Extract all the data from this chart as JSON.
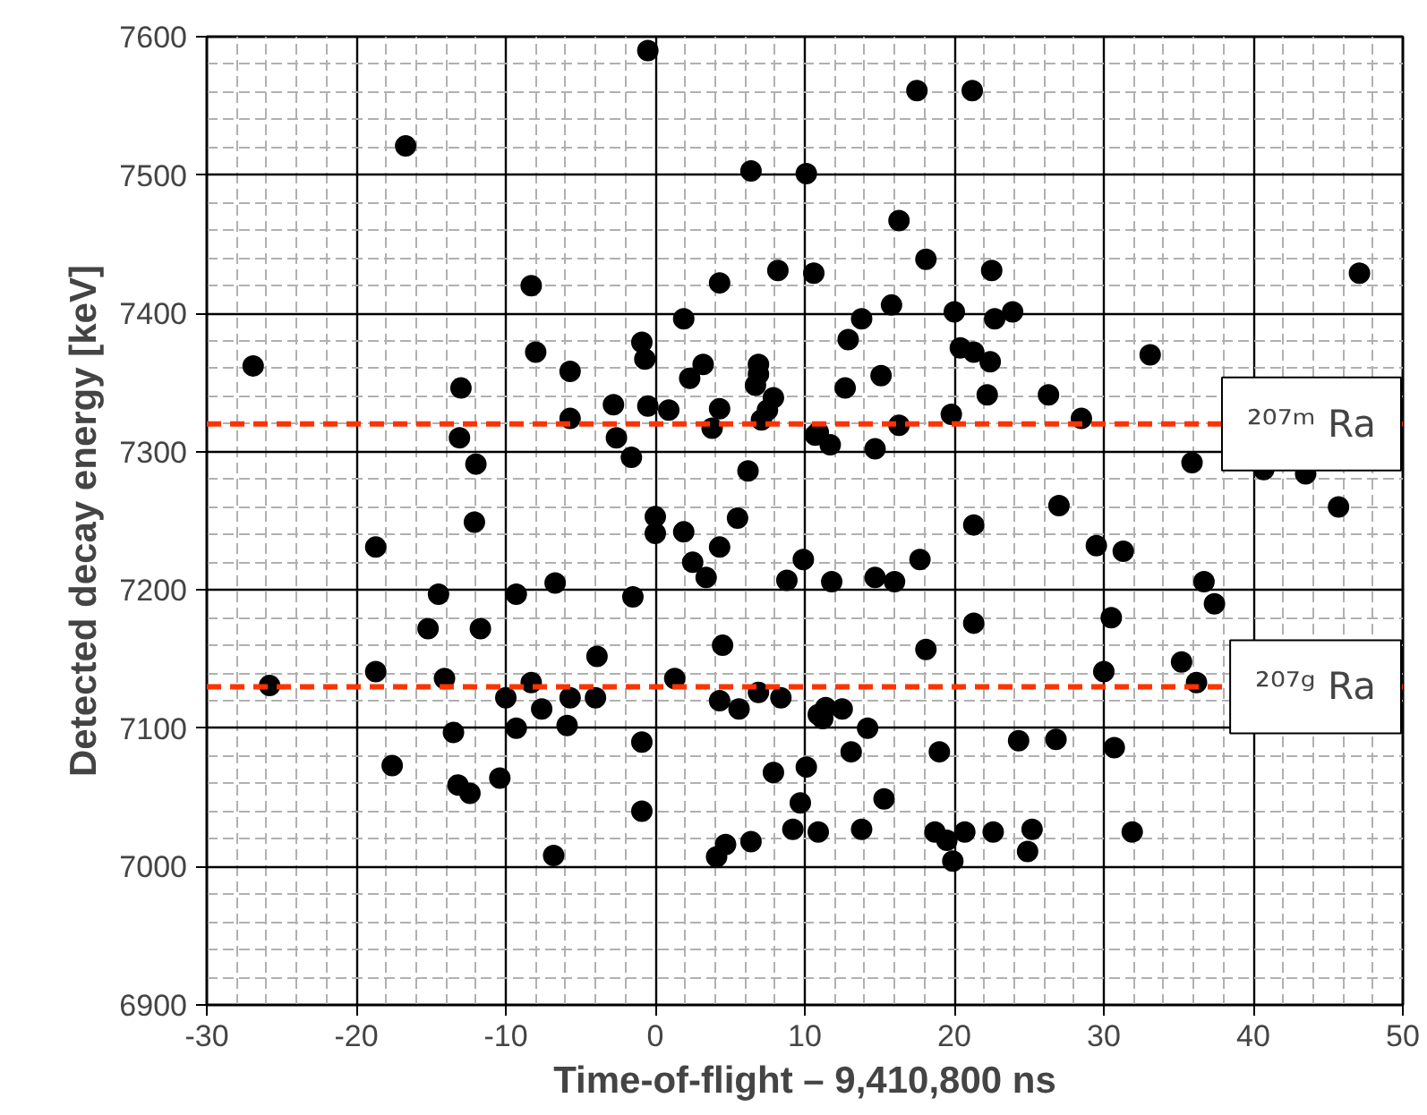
{
  "chart_data": {
    "type": "scatter",
    "xlabel": "Time-of-flight – 9,410,800 ns",
    "ylabel": "Detected decay energy [keV]",
    "xlim": [
      -30,
      50
    ],
    "xticks": [
      -30,
      -20,
      -10,
      0,
      10,
      20,
      30,
      40,
      50
    ],
    "ylim": [
      6900,
      7600
    ],
    "yticks": [
      6900,
      7000,
      7100,
      7200,
      7300,
      7400,
      7500,
      7600
    ],
    "grid": true,
    "marker": "circle",
    "ref_lines": [
      {
        "axis": "y",
        "value": 7320,
        "label": "²⁰⁷ᵐ Ra",
        "color": "#ff3300",
        "line_style": "dashed"
      },
      {
        "axis": "y",
        "value": 7130,
        "label": "²⁰⁷ᵍ Ra",
        "color": "#ff3300",
        "line_style": "dashed"
      }
    ],
    "series": [
      {
        "color": "#000000",
        "x": [
          -26.9,
          -25.8,
          -18.7,
          -16.7,
          -0.5,
          6.4,
          10.1,
          17.5,
          21.2,
          47.1,
          -8.3,
          4.3,
          8.2,
          10.6,
          1.9,
          -0.9,
          -0.7,
          -8.0,
          -5.7,
          3.2,
          2.3,
          6.9,
          6.7,
          6.9,
          7.9,
          7.5,
          7.1,
          -13.0,
          -5.7,
          -2.8,
          -0.5,
          0.9,
          4.3,
          3.8,
          -13.1,
          -2.6,
          -12.0,
          -1.6,
          6.2,
          10.7,
          16.3,
          18.1,
          22.5,
          15.8,
          13.8,
          20.0,
          22.7,
          23.9,
          12.9,
          20.4,
          21.3,
          22.4,
          15.1,
          12.7,
          22.2,
          26.3,
          33.1,
          19.8,
          28.5,
          16.3,
          10.9,
          11.7,
          14.7,
          35.9,
          40.7,
          43.5,
          45.7,
          27.0,
          -12.1,
          0.0,
          0.0,
          1.9,
          5.5,
          4.3,
          2.5,
          3.4,
          9.9,
          8.8,
          -6.7,
          -1.5,
          -14.5,
          -9.3,
          -15.2,
          -11.7,
          -3.9,
          4.5,
          -18.7,
          -14.1,
          -8.3,
          1.3,
          -10.0,
          -5.7,
          -4.0,
          4.3,
          5.6,
          6.9,
          8.4,
          -7.6,
          -5.9,
          -9.3,
          -13.5,
          -0.9,
          -17.6,
          -13.2,
          -12.4,
          -10.4,
          -0.9,
          -6.8,
          4.1,
          4.7,
          6.4,
          7.9,
          10.1,
          9.7,
          9.2,
          10.9,
          21.3,
          29.5,
          31.3,
          36.7,
          37.4,
          30.5,
          17.7,
          11.8,
          14.7,
          16.0,
          21.3,
          18.1,
          35.2,
          30.0,
          36.2,
          11.4,
          12.5,
          11.2,
          14.2,
          13.1,
          19.0,
          24.3,
          26.8,
          30.7,
          15.3,
          10.9,
          13.8,
          18.7,
          19.5,
          20.7,
          22.6,
          19.9,
          25.2,
          24.9,
          31.9
        ],
        "values": [
          7362,
          7131,
          7231,
          7521,
          7590,
          7503,
          7501,
          7561,
          7561,
          7429,
          7420,
          7422,
          7431,
          7429,
          7396,
          7379,
          7367,
          7372,
          7358,
          7363,
          7353,
          7363,
          7348,
          7356,
          7339,
          7330,
          7323,
          7346,
          7324,
          7334,
          7333,
          7330,
          7331,
          7317,
          7310,
          7310,
          7291,
          7296,
          7286,
          7312,
          7467,
          7439,
          7431,
          7406,
          7396,
          7401,
          7396,
          7401,
          7381,
          7375,
          7372,
          7365,
          7355,
          7346,
          7341,
          7341,
          7370,
          7327,
          7324,
          7319,
          7314,
          7305,
          7302,
          7292,
          7287,
          7284,
          7260,
          7261,
          7249,
          7253,
          7241,
          7242,
          7252,
          7231,
          7220,
          7209,
          7222,
          7207,
          7205,
          7195,
          7197,
          7197,
          7172,
          7172,
          7152,
          7160,
          7141,
          7136,
          7133,
          7136,
          7122,
          7122,
          7122,
          7120,
          7114,
          7126,
          7122,
          7114,
          7102,
          7100,
          7097,
          7090,
          7073,
          7059,
          7053,
          7064,
          7040,
          7008,
          7007,
          7016,
          7018,
          7068,
          7072,
          7046,
          7027,
          7110,
          7247,
          7232,
          7228,
          7206,
          7190,
          7180,
          7222,
          7206,
          7209,
          7206,
          7176,
          7157,
          7148,
          7141,
          7133,
          7115,
          7114,
          7107,
          7100,
          7083,
          7083,
          7091,
          7092,
          7086,
          7049,
          7025,
          7027,
          7025,
          7019,
          7025,
          7025,
          7004,
          7027,
          7011,
          7025
        ]
      }
    ]
  }
}
